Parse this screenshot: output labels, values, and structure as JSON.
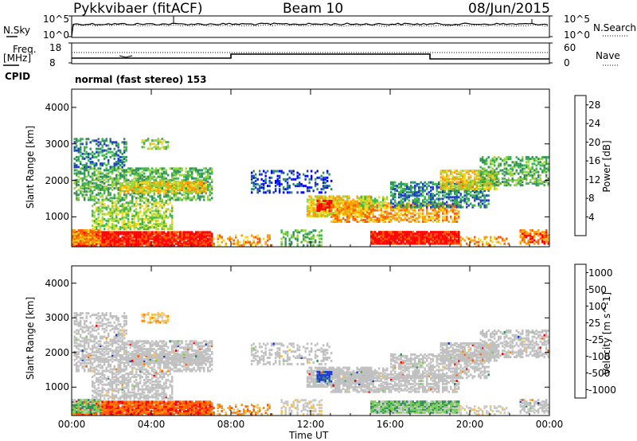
{
  "header": {
    "title": "Pykkvibaer (fitACF)",
    "beam": "Beam 10",
    "date": "08/Jun/2015"
  },
  "panels": {
    "nsky_label": "N.Sky",
    "nsky_ticks": [
      "10^5",
      "10^0"
    ],
    "nsearch_label": "N.Search",
    "nsearch_ticks": [
      "10^5",
      "10^0"
    ],
    "freq_label_1": "Freq.",
    "freq_label_2": "[MHz]",
    "freq_ticks": [
      "18",
      "8"
    ],
    "nave_label": "Nave",
    "nave_ticks": [
      "60",
      "0"
    ],
    "cpid_label": "CPID",
    "cpid_value": "normal (fast stereo) 153"
  },
  "colors": {
    "power": [
      "#0000ff",
      "#1e3cc8",
      "#2f8f5f",
      "#3fb54a",
      "#9ad43a",
      "#f0d81e",
      "#ff9a00",
      "#ff5a00",
      "#ff0000"
    ],
    "velocity": [
      "#ff0000",
      "#ff5a00",
      "#ff8c00",
      "#ffc040",
      "#c8c8c8",
      "#c8c8c8",
      "#78d050",
      "#2f8f5f",
      "#1e3cc8"
    ],
    "ground_scatter": "#c0c0c0"
  },
  "chart_data": [
    {
      "type": "heatmap",
      "panel": "power",
      "ylabel": "Slant Range [km]",
      "ylim": [
        180,
        4500
      ],
      "xlim": [
        "00:00",
        "24:00"
      ],
      "x_ticks": [
        "00:00",
        "04:00",
        "08:00",
        "12:00",
        "16:00",
        "20:00",
        "00:00"
      ],
      "y_ticks": [
        "1000",
        "2000",
        "3000",
        "4000"
      ],
      "colorbar_label": "Power [dB]",
      "colorbar_ticks": [
        "4",
        "8",
        "12",
        "16",
        "20",
        "24",
        "28"
      ],
      "colorbar_range": [
        0,
        30
      ]
    },
    {
      "type": "heatmap",
      "panel": "velocity",
      "ylabel": "Slant Range [km]",
      "xlabel": "Time UT",
      "ylim": [
        180,
        4500
      ],
      "xlim": [
        "00:00",
        "24:00"
      ],
      "x_ticks": [
        "00:00",
        "04:00",
        "08:00",
        "12:00",
        "16:00",
        "20:00",
        "00:00"
      ],
      "y_ticks": [
        "1000",
        "2000",
        "3000",
        "4000"
      ],
      "colorbar_label": "Velocity [m s^-1]",
      "colorbar_ticks": [
        "-1000",
        "-500",
        "-100",
        "-25",
        "25",
        "100",
        "500",
        "1000"
      ]
    }
  ]
}
